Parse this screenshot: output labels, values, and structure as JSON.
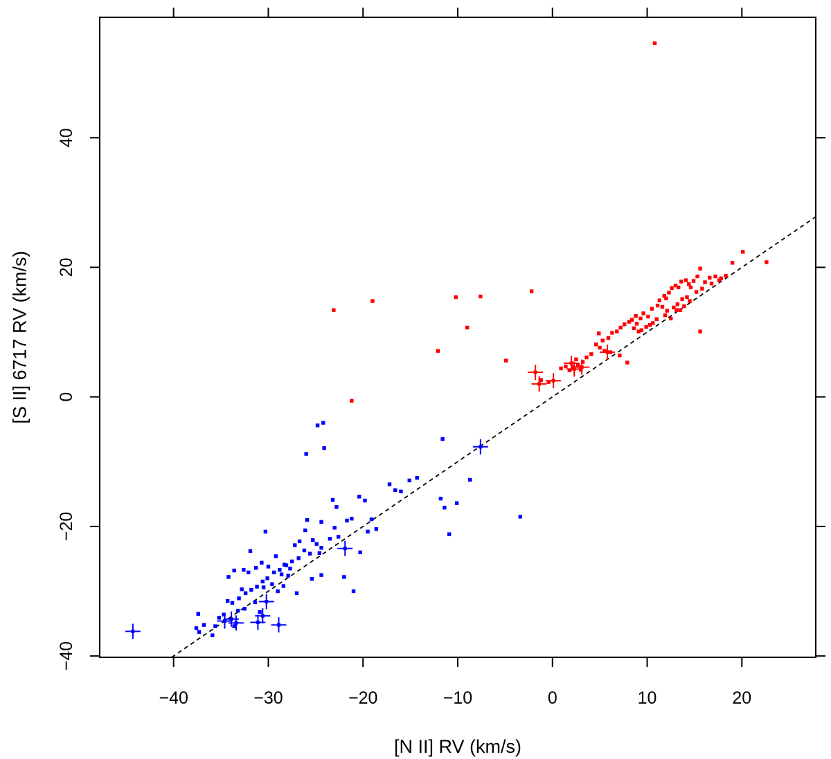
{
  "chart_data": {
    "type": "scatter",
    "xlabel": "[N II] RV (km/s)",
    "ylabel": "[S II] 6717 RV (km/s)",
    "xlim": [
      -47.8,
      27.8
    ],
    "ylim": [
      -40.2,
      58.6
    ],
    "x_ticks": [
      -40,
      -30,
      -20,
      -10,
      0,
      10,
      20
    ],
    "y_ticks": [
      -40,
      -20,
      0,
      20,
      40
    ],
    "x_tick_labels": [
      "−40",
      "−30",
      "−20",
      "−10",
      "0",
      "10",
      "20"
    ],
    "y_tick_labels": [
      "−40",
      "−20",
      "0",
      "20",
      "40"
    ],
    "frame_ticks": "all four sides",
    "grid": false,
    "reference_line": {
      "style": "dashed",
      "slope": 1,
      "intercept": 0
    },
    "colors": {
      "red_group": "#ff0000",
      "blue_group": "#0000ff",
      "line": "#000000"
    },
    "series": [
      {
        "color": "#ff0000",
        "marker": "square",
        "points": [
          [
            10.8,
            54.6
          ],
          [
            20.1,
            22.4
          ],
          [
            22.6,
            20.8
          ],
          [
            19.0,
            20.7
          ],
          [
            18.3,
            18.7
          ],
          [
            17.8,
            18.3
          ],
          [
            17.2,
            18.6
          ],
          [
            16.6,
            18.4
          ],
          [
            16.1,
            17.7
          ],
          [
            15.6,
            19.8
          ],
          [
            15.3,
            18.6
          ],
          [
            14.9,
            17.9
          ],
          [
            14.4,
            17.4
          ],
          [
            14.1,
            18.0
          ],
          [
            13.6,
            17.8
          ],
          [
            13.3,
            16.9
          ],
          [
            13.0,
            17.2
          ],
          [
            12.6,
            16.8
          ],
          [
            12.3,
            16.1
          ],
          [
            11.8,
            15.6
          ],
          [
            11.3,
            14.9
          ],
          [
            15.8,
            16.7
          ],
          [
            15.2,
            16.2
          ],
          [
            14.6,
            16.9
          ],
          [
            14.2,
            15.4
          ],
          [
            13.7,
            15.1
          ],
          [
            13.2,
            14.3
          ],
          [
            12.8,
            13.8
          ],
          [
            12.1,
            13.3
          ],
          [
            11.6,
            13.9
          ],
          [
            11.1,
            14.1
          ],
          [
            10.5,
            13.6
          ],
          [
            10.1,
            12.4
          ],
          [
            9.6,
            12.9
          ],
          [
            9.3,
            12.1
          ],
          [
            8.8,
            12.5
          ],
          [
            8.4,
            11.9
          ],
          [
            8.1,
            11.6
          ],
          [
            7.6,
            11.2
          ],
          [
            7.2,
            10.7
          ],
          [
            6.8,
            10.1
          ],
          [
            6.3,
            9.9
          ],
          [
            5.9,
            9.1
          ],
          [
            5.3,
            8.7
          ],
          [
            4.9,
            9.8
          ],
          [
            4.6,
            8.1
          ],
          [
            5.0,
            7.6
          ],
          [
            5.5,
            7.1
          ],
          [
            6.1,
            6.9
          ],
          [
            7.1,
            6.4
          ],
          [
            7.9,
            5.3
          ],
          [
            10.6,
            11.4
          ],
          [
            9.9,
            10.8
          ],
          [
            9.1,
            10.1
          ],
          [
            8.6,
            10.6
          ],
          [
            11.9,
            12.6
          ],
          [
            12.5,
            12.1
          ],
          [
            13.1,
            13.4
          ],
          [
            13.9,
            14.0
          ],
          [
            14.5,
            14.8
          ],
          [
            15.6,
            10.1
          ],
          [
            16.8,
            17.5
          ],
          [
            17.6,
            18.0
          ],
          [
            13.5,
            13.4
          ],
          [
            12.0,
            15.2
          ],
          [
            11.0,
            12.0
          ],
          [
            10.3,
            11.1
          ],
          [
            9.4,
            10.3
          ],
          [
            8.9,
            11.3
          ],
          [
            4.1,
            6.6
          ],
          [
            3.6,
            6.1
          ],
          [
            3.2,
            5.4
          ],
          [
            2.7,
            4.9
          ],
          [
            2.2,
            4.6
          ],
          [
            1.8,
            4.1
          ],
          [
            1.4,
            4.7
          ],
          [
            0.9,
            4.4
          ],
          [
            2.5,
            5.8
          ],
          [
            3.0,
            4.2
          ],
          [
            -0.4,
            2.3
          ],
          [
            -1.2,
            2.6
          ],
          [
            -2.2,
            16.3
          ],
          [
            -7.6,
            15.5
          ],
          [
            -10.2,
            15.4
          ],
          [
            -19.0,
            14.8
          ],
          [
            -23.1,
            13.4
          ],
          [
            -9.0,
            10.7
          ],
          [
            -12.1,
            7.1
          ],
          [
            -4.9,
            5.6
          ],
          [
            -21.2,
            -0.6
          ]
        ]
      },
      {
        "color": "#ff0000",
        "marker": "plus",
        "points": [
          [
            -1.8,
            3.8
          ],
          [
            -1.4,
            2.0
          ],
          [
            0.1,
            2.5
          ],
          [
            2.3,
            4.3
          ],
          [
            3.1,
            4.6
          ],
          [
            5.8,
            6.9
          ],
          [
            2.0,
            5.2
          ]
        ]
      },
      {
        "color": "#0000ff",
        "marker": "square",
        "points": [
          [
            -24.2,
            -4.0
          ],
          [
            -24.8,
            -4.4
          ],
          [
            -26.0,
            -8.8
          ],
          [
            -24.1,
            -7.9
          ],
          [
            -11.6,
            -6.5
          ],
          [
            -14.3,
            -12.5
          ],
          [
            -15.1,
            -12.9
          ],
          [
            -16.6,
            -14.4
          ],
          [
            -17.2,
            -13.5
          ],
          [
            -16.0,
            -14.6
          ],
          [
            -8.7,
            -12.8
          ],
          [
            -3.4,
            -18.5
          ],
          [
            -11.8,
            -15.7
          ],
          [
            -10.1,
            -16.4
          ],
          [
            -11.4,
            -17.1
          ],
          [
            -10.9,
            -21.2
          ],
          [
            -19.8,
            -16.0
          ],
          [
            -20.4,
            -15.4
          ],
          [
            -19.1,
            -18.9
          ],
          [
            -18.6,
            -20.4
          ],
          [
            -19.5,
            -20.8
          ],
          [
            -21.2,
            -18.8
          ],
          [
            -21.7,
            -19.1
          ],
          [
            -22.8,
            -17.0
          ],
          [
            -23.2,
            -15.9
          ],
          [
            -23.0,
            -20.2
          ],
          [
            -24.4,
            -19.3
          ],
          [
            -25.9,
            -19.0
          ],
          [
            -26.1,
            -20.6
          ],
          [
            -26.7,
            -22.3
          ],
          [
            -27.2,
            -22.9
          ],
          [
            -25.3,
            -22.1
          ],
          [
            -24.9,
            -22.7
          ],
          [
            -24.4,
            -23.3
          ],
          [
            -24.6,
            -24.1
          ],
          [
            -25.6,
            -24.2
          ],
          [
            -26.2,
            -23.7
          ],
          [
            -26.8,
            -24.9
          ],
          [
            -27.5,
            -25.4
          ],
          [
            -28.1,
            -26.0
          ],
          [
            -28.8,
            -26.7
          ],
          [
            -29.4,
            -27.1
          ],
          [
            -30.1,
            -28.0
          ],
          [
            -30.6,
            -28.5
          ],
          [
            -31.2,
            -29.3
          ],
          [
            -31.8,
            -29.8
          ],
          [
            -32.4,
            -30.3
          ],
          [
            -33.1,
            -31.1
          ],
          [
            -33.8,
            -31.8
          ],
          [
            -34.3,
            -31.5
          ],
          [
            -30.3,
            -20.8
          ],
          [
            -30.7,
            -25.6
          ],
          [
            -31.3,
            -26.4
          ],
          [
            -32.1,
            -27.1
          ],
          [
            -32.6,
            -26.7
          ],
          [
            -33.6,
            -26.8
          ],
          [
            -34.2,
            -27.8
          ],
          [
            -31.9,
            -23.8
          ],
          [
            -29.2,
            -24.6
          ],
          [
            -28.6,
            -27.4
          ],
          [
            -29.6,
            -28.9
          ],
          [
            -30.5,
            -29.4
          ],
          [
            -29.0,
            -30.0
          ],
          [
            -28.4,
            -29.2
          ],
          [
            -27.9,
            -27.6
          ],
          [
            -27.0,
            -30.3
          ],
          [
            -25.4,
            -28.1
          ],
          [
            -24.4,
            -27.5
          ],
          [
            -22.0,
            -27.8
          ],
          [
            -21.0,
            -30.0
          ],
          [
            -20.3,
            -24.0
          ],
          [
            -22.6,
            -21.6
          ],
          [
            -23.5,
            -21.9
          ],
          [
            -37.4,
            -33.5
          ],
          [
            -36.8,
            -35.2
          ],
          [
            -37.6,
            -35.7
          ],
          [
            -37.3,
            -36.3
          ],
          [
            -35.9,
            -36.8
          ],
          [
            -35.2,
            -34.1
          ],
          [
            -34.7,
            -33.6
          ],
          [
            -33.2,
            -33.0
          ],
          [
            -32.5,
            -32.7
          ],
          [
            -31.4,
            -31.7
          ],
          [
            -30.9,
            -33.2
          ],
          [
            -35.6,
            -35.4
          ],
          [
            -33.6,
            -35.4
          ],
          [
            -30.0,
            -26.2
          ],
          [
            -32.8,
            -29.7
          ],
          [
            -28.3,
            -25.9
          ],
          [
            -27.7,
            -26.5
          ]
        ]
      },
      {
        "color": "#0000ff",
        "marker": "plus",
        "points": [
          [
            -44.3,
            -36.2
          ],
          [
            -34.6,
            -34.6
          ],
          [
            -33.9,
            -34.3
          ],
          [
            -33.4,
            -34.9
          ],
          [
            -31.1,
            -34.8
          ],
          [
            -30.6,
            -33.8
          ],
          [
            -30.2,
            -31.6
          ],
          [
            -28.9,
            -35.2
          ],
          [
            -21.9,
            -23.4
          ],
          [
            -7.6,
            -7.7
          ]
        ]
      }
    ]
  }
}
